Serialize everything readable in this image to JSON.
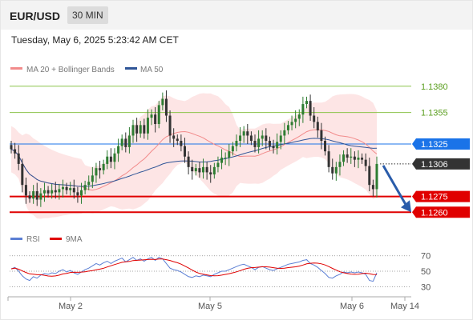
{
  "header": {
    "symbol": "EUR/USD",
    "interval": "30 MIN"
  },
  "timestamp": "Tuesday, May 6, 2025 5:23:42 AM CET",
  "legend": {
    "bb": {
      "label": "MA 20 + Bollinger Bands",
      "color": "#f28b8b"
    },
    "ma50": {
      "label": "MA 50",
      "color": "#2f5597"
    },
    "rsi": {
      "label": "RSI",
      "color": "#5b7fd4"
    },
    "ma9": {
      "label": "9MA",
      "color": "#e00000"
    }
  },
  "colors": {
    "bullish": "#2e7d32",
    "bearish": "#333333",
    "band_fill": "#fde0e0",
    "resistance": "#8bc34a",
    "support": "#e00000",
    "ma50_tag": "#1a73e8",
    "price_tag": "#333333",
    "arrow": "#2a5caa"
  },
  "chart_data": {
    "type": "candlestick",
    "y_range": [
      1.1245,
      1.1392
    ],
    "x_ticks": [
      "May 2",
      "May 5",
      "May 6",
      "May 14"
    ],
    "levels": [
      {
        "label": "1.1380",
        "value": 1.138,
        "kind": "resistance"
      },
      {
        "label": "1.1355",
        "value": 1.1355,
        "kind": "resistance"
      },
      {
        "label": "1.1325",
        "value": 1.1325,
        "kind": "ma50"
      },
      {
        "label": "1.1306",
        "value": 1.1306,
        "kind": "price"
      },
      {
        "label": "1.1275",
        "value": 1.1275,
        "kind": "support"
      },
      {
        "label": "1.1260",
        "value": 1.126,
        "kind": "support"
      }
    ],
    "close_prices": [
      1.132,
      1.1316,
      1.1306,
      1.1286,
      1.1276,
      1.1273,
      1.128,
      1.1272,
      1.1278,
      1.1281,
      1.1278,
      1.1281,
      1.1279,
      1.1282,
      1.1284,
      1.1281,
      1.1283,
      1.1279,
      1.1276,
      1.1281,
      1.1286,
      1.1289,
      1.1295,
      1.1302,
      1.13,
      1.1306,
      1.1313,
      1.1308,
      1.1316,
      1.1323,
      1.133,
      1.1322,
      1.1333,
      1.1343,
      1.1335,
      1.1343,
      1.1335,
      1.135,
      1.1353,
      1.1344,
      1.1362,
      1.1368,
      1.1352,
      1.1333,
      1.133,
      1.1328,
      1.1323,
      1.1313,
      1.1303,
      1.1299,
      1.1302,
      1.1298,
      1.1303,
      1.1298,
      1.1296,
      1.1303,
      1.1307,
      1.1312,
      1.1312,
      1.1318,
      1.1323,
      1.1328,
      1.1333,
      1.1337,
      1.1333,
      1.1328,
      1.1322,
      1.133,
      1.1333,
      1.1328,
      1.1323,
      1.1321,
      1.1327,
      1.1333,
      1.1338,
      1.1343,
      1.1346,
      1.1349,
      1.1353,
      1.1363,
      1.1366,
      1.1352,
      1.1346,
      1.1338,
      1.1328,
      1.1318,
      1.1303,
      1.1297,
      1.1303,
      1.1308,
      1.1315,
      1.1312,
      1.1313,
      1.131,
      1.1312,
      1.131,
      1.1304,
      1.1286,
      1.1282,
      1.1306
    ],
    "rsi": {
      "ticks": [
        70,
        50,
        30
      ],
      "y_range": [
        20,
        78
      ],
      "values": [
        53,
        55,
        50,
        44,
        40,
        38,
        43,
        41,
        45,
        47,
        46,
        48,
        47,
        50,
        52,
        49,
        51,
        48,
        46,
        49,
        52,
        54,
        57,
        60,
        58,
        61,
        63,
        60,
        63,
        65,
        67,
        62,
        65,
        68,
        64,
        66,
        63,
        66,
        68,
        64,
        68,
        66,
        60,
        54,
        52,
        51,
        49,
        46,
        43,
        42,
        44,
        43,
        45,
        44,
        43,
        46,
        48,
        50,
        50,
        52,
        54,
        56,
        58,
        59,
        57,
        55,
        52,
        55,
        56,
        54,
        52,
        51,
        53,
        55,
        57,
        59,
        60,
        61,
        62,
        64,
        65,
        60,
        58,
        55,
        51,
        47,
        42,
        41,
        44,
        46,
        49,
        48,
        49,
        48,
        49,
        48,
        46,
        38,
        37,
        48
      ]
    }
  }
}
